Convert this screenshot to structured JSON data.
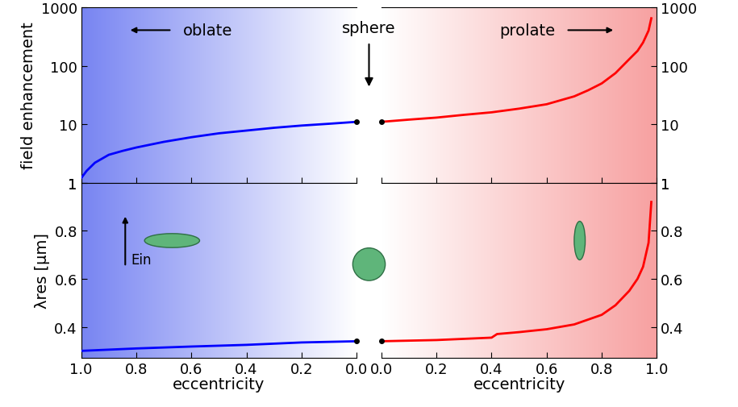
{
  "chart_data": [
    {
      "type": "line",
      "ylabel": "field enhancement",
      "annotations": [
        "oblate"
      ],
      "x": [
        0.0,
        0.1,
        0.2,
        0.3,
        0.4,
        0.5,
        0.6,
        0.7,
        0.8,
        0.85,
        0.9,
        0.95,
        0.98,
        1.0
      ],
      "values": [
        11,
        10.2,
        9.5,
        8.7,
        7.8,
        7.0,
        6.0,
        5.0,
        4.0,
        3.5,
        3.0,
        2.2,
        1.6,
        1.2
      ],
      "color": "#0000ff",
      "log": "y",
      "tick_labels": "y",
      "xlim": [
        1.0,
        0.0
      ],
      "xticks": [
        1.0,
        0.8,
        0.6,
        0.4,
        0.2,
        0.0
      ],
      "ylim": [
        1,
        1000
      ],
      "yticks": [
        1,
        10,
        100,
        1000
      ]
    },
    {
      "type": "line",
      "annotations": [
        "sphere",
        "prolate"
      ],
      "x": [
        0.0,
        0.1,
        0.2,
        0.3,
        0.4,
        0.5,
        0.6,
        0.7,
        0.75,
        0.8,
        0.85,
        0.9,
        0.93,
        0.95,
        0.97,
        0.98
      ],
      "values": [
        11,
        12,
        13,
        14.5,
        16,
        18.5,
        22,
        30,
        38,
        50,
        75,
        130,
        180,
        250,
        400,
        650
      ],
      "color": "#ff0000",
      "log": "y",
      "tick_labels": "y",
      "xlim": [
        0.0,
        1.0
      ],
      "xticks": [
        0.0,
        0.2,
        0.4,
        0.6,
        0.8,
        1.0
      ],
      "ylim": [
        1,
        1000
      ],
      "yticks": [
        1,
        10,
        100,
        1000
      ]
    },
    {
      "type": "line",
      "ylabel": "λres [μm]",
      "xlabel": "eccentricity",
      "annotations": [
        "Ein"
      ],
      "x": [
        0.0,
        0.2,
        0.4,
        0.6,
        0.8,
        1.0
      ],
      "values": [
        0.34,
        0.335,
        0.325,
        0.318,
        0.31,
        0.3
      ],
      "color": "#0000ff",
      "xlim": [
        1.0,
        0.0
      ],
      "xticks": [
        1.0,
        0.8,
        0.6,
        0.4,
        0.2,
        0.0
      ],
      "ylim": [
        0.27,
        1
      ],
      "yticks": [
        0.4,
        0.6,
        0.8,
        1
      ]
    },
    {
      "type": "line",
      "xlabel": "eccentricity",
      "x": [
        0.0,
        0.2,
        0.4,
        0.42,
        0.5,
        0.6,
        0.7,
        0.8,
        0.85,
        0.9,
        0.93,
        0.95,
        0.97,
        0.98
      ],
      "values": [
        0.34,
        0.345,
        0.355,
        0.37,
        0.378,
        0.39,
        0.41,
        0.45,
        0.49,
        0.55,
        0.6,
        0.65,
        0.75,
        0.92
      ],
      "color": "#ff0000",
      "xlim": [
        0.0,
        1.0
      ],
      "xticks": [
        0.0,
        0.2,
        0.4,
        0.6,
        0.8,
        1.0
      ],
      "ylim": [
        0.27,
        1
      ],
      "yticks": [
        0.4,
        0.6,
        0.8,
        1
      ]
    }
  ]
}
